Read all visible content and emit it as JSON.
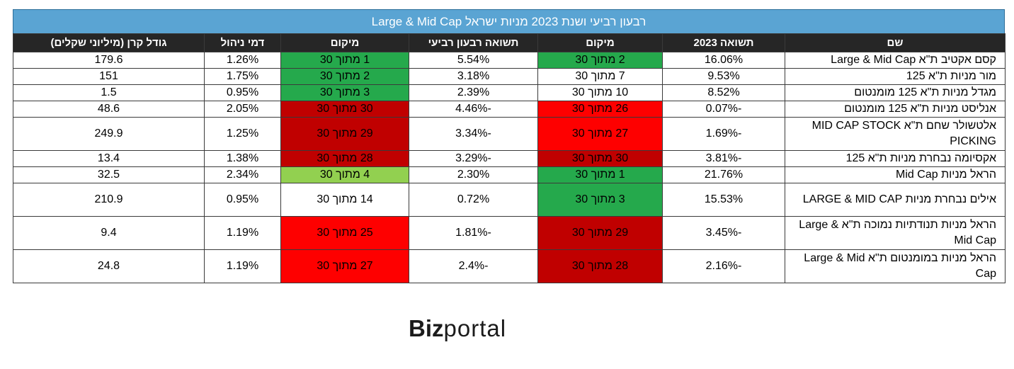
{
  "title": "רבעון רביעי ושנת 2023 מניות ישראל Large & Mid Cap",
  "headers": [
    "שם",
    "תשואה 2023",
    "מיקום",
    "תשואה רבעון רביעי",
    "מיקום",
    "דמי ניהול",
    "גודל קרן (מיליוני שקלים)"
  ],
  "rows": [
    {
      "name": "קסם אקטיב ת\"א Large & Mid Cap",
      "ret_2023": "16.06%",
      "rank_2023": "2 מתוך 30",
      "ret_q4": "5.54%",
      "rank_q4": "1 מתוך 30",
      "fee": "1.26%",
      "size": "179.6"
    },
    {
      "name": "מור מניות ת\"א 125",
      "ret_2023": "9.53%",
      "rank_2023": "7 מתוך 30",
      "ret_q4": "3.18%",
      "rank_q4": "2 מתוך 30",
      "fee": "1.75%",
      "size": "151"
    },
    {
      "name": "מגדל מניות ת\"א 125 מומנטום",
      "ret_2023": "8.52%",
      "rank_2023": "10 מתוך 30",
      "ret_q4": "2.39%",
      "rank_q4": "3 מתוך 30",
      "fee": "0.95%",
      "size": "1.5"
    },
    {
      "name": "אנליסט מניות ת\"א 125 מומנטום",
      "ret_2023": "-0.07%",
      "rank_2023": "26 מתוך 30",
      "ret_q4": "-4.46%",
      "rank_q4": "30 מתוך 30",
      "fee": "2.05%",
      "size": "48.6"
    },
    {
      "name": "אלטשולר שחם ת\"א MID CAP STOCK PICKING",
      "ret_2023": "-1.69%",
      "rank_2023": "27 מתוך 30",
      "ret_q4": "-3.34%",
      "rank_q4": "29 מתוך 30",
      "fee": "1.25%",
      "size": "249.9"
    },
    {
      "name": "אקסיומה נבחרת מניות ת\"א 125",
      "ret_2023": "-3.81%",
      "rank_2023": "30 מתוך 30",
      "ret_q4": "-3.29%",
      "rank_q4": "28 מתוך 30",
      "fee": "1.38%",
      "size": "13.4"
    },
    {
      "name": "הראל מניות Mid Cap",
      "ret_2023": "21.76%",
      "rank_2023": "1 מתוך 30",
      "ret_q4": "2.30%",
      "rank_q4": "4 מתוך 30",
      "fee": "2.34%",
      "size": "32.5"
    },
    {
      "name": "אילים נבחרת מניות LARGE & MID CAP",
      "ret_2023": "15.53%",
      "rank_2023": "3 מתוך 30",
      "ret_q4": "0.72%",
      "rank_q4": "14 מתוך 30",
      "fee": "0.95%",
      "size": "210.9"
    },
    {
      "name": "הראל מניות תנודתיות נמוכה ת\"א Large & Mid Cap",
      "ret_2023": "-3.45%",
      "rank_2023": "29 מתוך 30",
      "ret_q4": "-1.81%",
      "rank_q4": "25 מתוך 30",
      "fee": "1.19%",
      "size": "9.4"
    },
    {
      "name": "הראל מניות במומנטום ת\"א Large & Mid Cap",
      "ret_2023": "-2.16%",
      "rank_2023": "28 מתוך 30",
      "ret_q4": "-2.4%",
      "rank_q4": "27 מתוך 30",
      "fee": "1.19%",
      "size": "24.8"
    }
  ],
  "colors": {
    "title_bg": "#5aa4d3",
    "header_bg": "#262626",
    "green_dark": "#25a94c",
    "green_light": "#92d050",
    "red": "#fe0000",
    "dark_red": "#c00000"
  },
  "logo": {
    "bold": "Biz",
    "light": "portal"
  }
}
